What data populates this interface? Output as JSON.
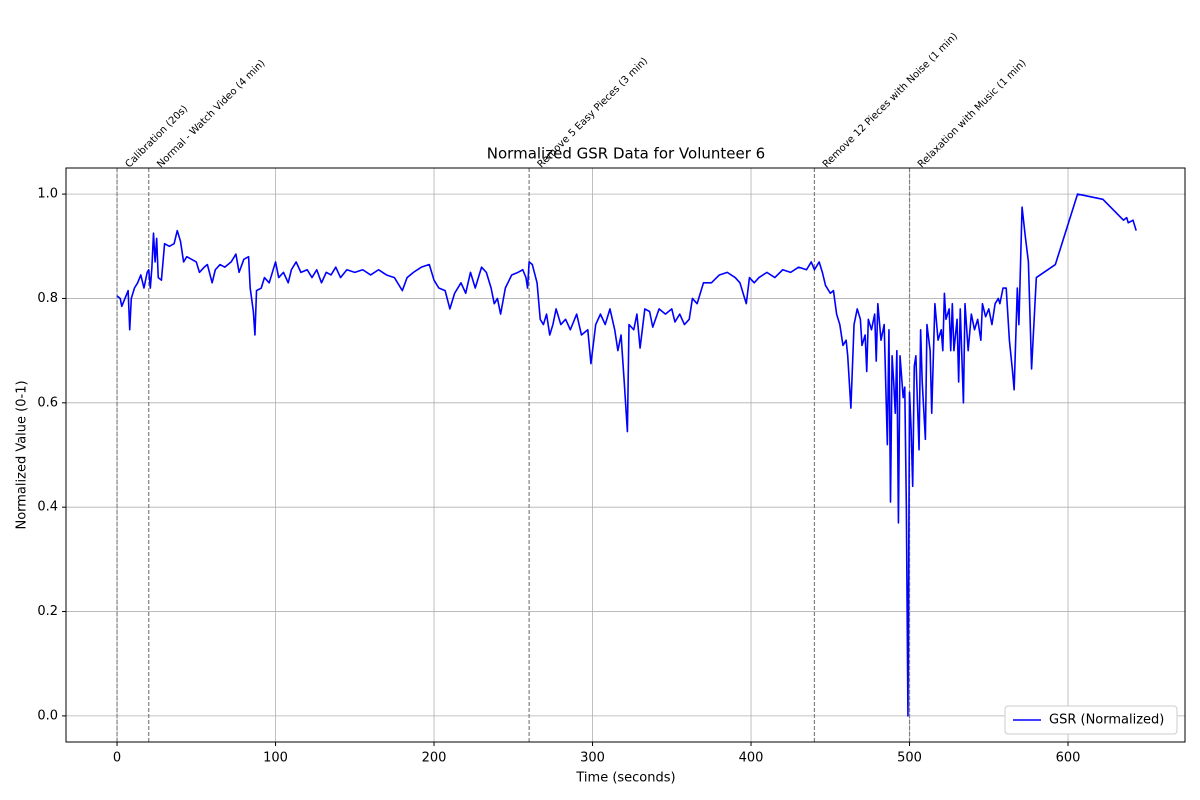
{
  "chart_data": {
    "type": "line",
    "title": "Normalized GSR Data for Volunteer 6",
    "x_label": "Time (seconds)",
    "y_label": "Normalized Value (0-1)",
    "xlim": [
      -32.2,
      673.8
    ],
    "ylim": [
      -0.05,
      1.05
    ],
    "xticks": [
      0,
      100,
      200,
      300,
      400,
      500,
      600
    ],
    "yticks": [
      {
        "value": 0,
        "label": "0.0"
      },
      0.2,
      0.4,
      0.6,
      0.8,
      {
        "value": 1,
        "label": "1.0"
      }
    ],
    "grid": true,
    "legend_position": "lower right",
    "events": [
      {
        "x": 0,
        "label": "Calibration (20s)"
      },
      {
        "x": 20,
        "label": "Normal - Watch Video (4 min)"
      },
      {
        "x": 260,
        "label": "Remove 5 Easy Pieces (3 min)"
      },
      {
        "x": 440,
        "label": "Remove 12 Pieces with Noise (1 min)"
      },
      {
        "x": 500,
        "label": "Relaxation with Music (1 min)"
      }
    ],
    "x": [
      0,
      2,
      3,
      5,
      7,
      8,
      9,
      11,
      13,
      15,
      17,
      19,
      20,
      21,
      22,
      23,
      24,
      25,
      26,
      28,
      30,
      33,
      36,
      38,
      40,
      42,
      44,
      47,
      50,
      52,
      55,
      57,
      60,
      62,
      65,
      68,
      72,
      75,
      77,
      80,
      83,
      84,
      86,
      87,
      88,
      91,
      93,
      96,
      100,
      102,
      105,
      108,
      110,
      113,
      116,
      120,
      123,
      126,
      129,
      132,
      135,
      138,
      141,
      145,
      150,
      155,
      160,
      165,
      170,
      175,
      180,
      183,
      187,
      192,
      197,
      200,
      203,
      207,
      210,
      213,
      217,
      220,
      223,
      226,
      230,
      233,
      236,
      238,
      240,
      242,
      245,
      249,
      253,
      256,
      258,
      259,
      260,
      262,
      265,
      267,
      269,
      271,
      273,
      275,
      277,
      280,
      283,
      286,
      290,
      293,
      297,
      299,
      302,
      305,
      308,
      311,
      314,
      316,
      318,
      320,
      322,
      323,
      326,
      328,
      330,
      333,
      336,
      338,
      342,
      346,
      350,
      352,
      355,
      358,
      361,
      363,
      366,
      370,
      375,
      380,
      385,
      390,
      393,
      395,
      397,
      399,
      402,
      405,
      410,
      415,
      420,
      425,
      430,
      435,
      438,
      440,
      443,
      445,
      447,
      450,
      452,
      454,
      456,
      458,
      460,
      461,
      463,
      465,
      467,
      469,
      470,
      472,
      473,
      474,
      476,
      478,
      479,
      480,
      482,
      484,
      486,
      487,
      488,
      489,
      490,
      491,
      492,
      493,
      494,
      496,
      497,
      498,
      499,
      500,
      501,
      502,
      503,
      504,
      506,
      507,
      508,
      510,
      511,
      513,
      514,
      516,
      518,
      520,
      521,
      522,
      523,
      525,
      526,
      527,
      528,
      530,
      531,
      532,
      534,
      535,
      537,
      539,
      541,
      543,
      545,
      546,
      548,
      550,
      552,
      554,
      556,
      557,
      559,
      561,
      563,
      565,
      566,
      568,
      569,
      571,
      573,
      575,
      577,
      580,
      592,
      606,
      622,
      635,
      637,
      638,
      641,
      643
    ],
    "series": [
      {
        "name": "GSR (Normalized)",
        "color": "#0000ff",
        "values": [
          0.805,
          0.8,
          0.785,
          0.8,
          0.815,
          0.74,
          0.8,
          0.82,
          0.83,
          0.845,
          0.82,
          0.85,
          0.855,
          0.82,
          0.86,
          0.925,
          0.87,
          0.915,
          0.84,
          0.835,
          0.905,
          0.9,
          0.905,
          0.93,
          0.91,
          0.87,
          0.88,
          0.875,
          0.87,
          0.85,
          0.86,
          0.865,
          0.83,
          0.855,
          0.865,
          0.86,
          0.87,
          0.885,
          0.85,
          0.875,
          0.88,
          0.82,
          0.775,
          0.73,
          0.815,
          0.82,
          0.84,
          0.83,
          0.87,
          0.84,
          0.85,
          0.83,
          0.855,
          0.87,
          0.85,
          0.855,
          0.84,
          0.855,
          0.83,
          0.85,
          0.845,
          0.86,
          0.84,
          0.855,
          0.85,
          0.855,
          0.845,
          0.855,
          0.845,
          0.84,
          0.815,
          0.84,
          0.85,
          0.86,
          0.865,
          0.835,
          0.82,
          0.815,
          0.78,
          0.81,
          0.83,
          0.81,
          0.85,
          0.82,
          0.86,
          0.85,
          0.82,
          0.79,
          0.8,
          0.77,
          0.82,
          0.845,
          0.85,
          0.855,
          0.84,
          0.82,
          0.87,
          0.865,
          0.83,
          0.76,
          0.75,
          0.77,
          0.73,
          0.75,
          0.78,
          0.75,
          0.76,
          0.74,
          0.77,
          0.73,
          0.74,
          0.675,
          0.75,
          0.77,
          0.75,
          0.78,
          0.74,
          0.7,
          0.73,
          0.64,
          0.545,
          0.75,
          0.74,
          0.77,
          0.705,
          0.78,
          0.775,
          0.745,
          0.78,
          0.77,
          0.78,
          0.755,
          0.77,
          0.75,
          0.76,
          0.8,
          0.79,
          0.83,
          0.83,
          0.845,
          0.85,
          0.84,
          0.83,
          0.81,
          0.79,
          0.84,
          0.83,
          0.84,
          0.85,
          0.84,
          0.855,
          0.85,
          0.86,
          0.855,
          0.87,
          0.855,
          0.87,
          0.85,
          0.825,
          0.81,
          0.815,
          0.77,
          0.75,
          0.71,
          0.72,
          0.69,
          0.59,
          0.75,
          0.78,
          0.76,
          0.71,
          0.73,
          0.66,
          0.76,
          0.74,
          0.77,
          0.68,
          0.79,
          0.72,
          0.75,
          0.52,
          0.74,
          0.41,
          0.69,
          0.64,
          0.58,
          0.7,
          0.37,
          0.69,
          0.61,
          0.63,
          0.4,
          0.0,
          0.62,
          0.55,
          0.44,
          0.67,
          0.69,
          0.51,
          0.74,
          0.64,
          0.53,
          0.75,
          0.7,
          0.58,
          0.79,
          0.72,
          0.74,
          0.7,
          0.81,
          0.76,
          0.78,
          0.7,
          0.79,
          0.7,
          0.76,
          0.64,
          0.78,
          0.6,
          0.79,
          0.7,
          0.77,
          0.74,
          0.76,
          0.72,
          0.79,
          0.765,
          0.78,
          0.75,
          0.79,
          0.8,
          0.79,
          0.82,
          0.82,
          0.72,
          0.66,
          0.625,
          0.82,
          0.75,
          0.975,
          0.92,
          0.87,
          0.665,
          0.84,
          0.865,
          1.0,
          0.99,
          0.95,
          0.955,
          0.945,
          0.95,
          0.93
        ]
      }
    ]
  }
}
